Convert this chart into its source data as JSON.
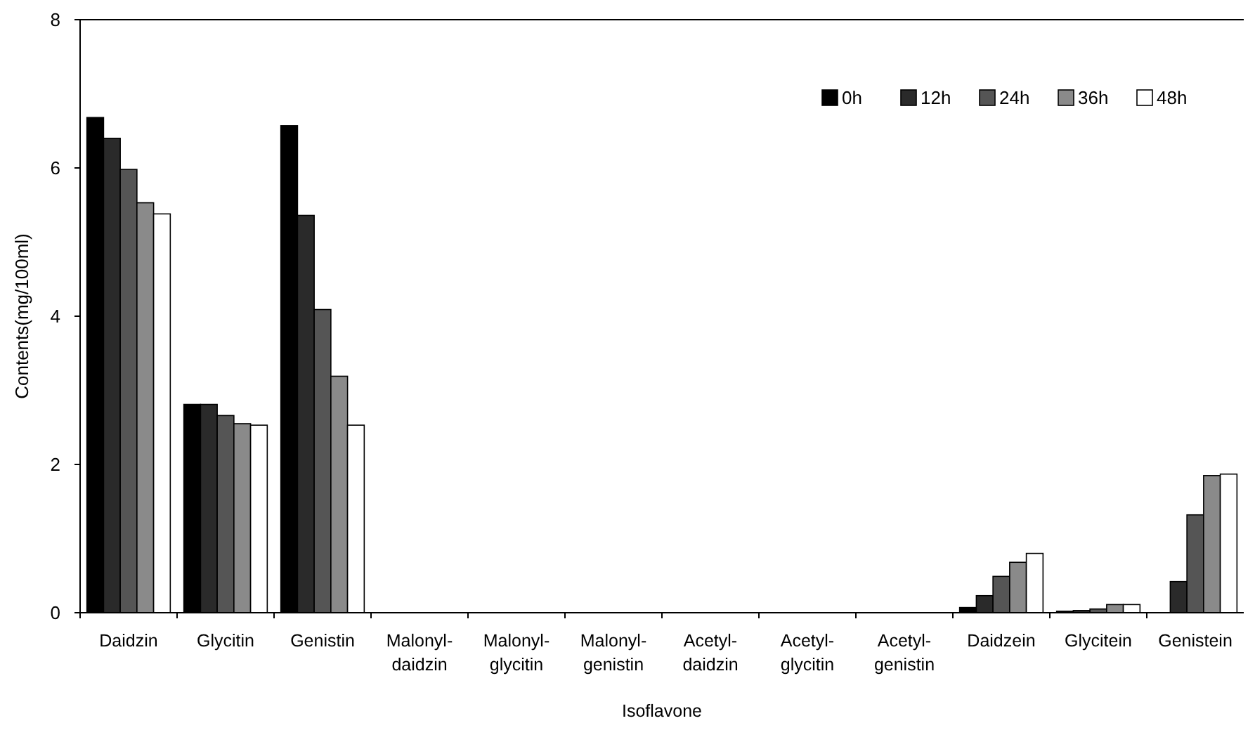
{
  "chart_data": {
    "type": "bar",
    "xlabel": "Isoflavone",
    "ylabel": "Contents(mg/100ml)",
    "categories": [
      "Daidzin",
      "Glycitin",
      "Genistin",
      "Malonyl-daidzin",
      "Malonyl-glycitin",
      "Malonyl-genistin",
      "Acetyl-daidzin",
      "Acetyl-glycitin",
      "Acetyl-genistin",
      "Daidzein",
      "Glycitein",
      "Genistein"
    ],
    "series": [
      {
        "name": "0h",
        "color": "#000000",
        "values": [
          6.68,
          2.81,
          6.57,
          0,
          0,
          0,
          0,
          0,
          0,
          0.07,
          0.02,
          0
        ]
      },
      {
        "name": "12h",
        "color": "#2a2a2a",
        "values": [
          6.4,
          2.81,
          5.36,
          0,
          0,
          0,
          0,
          0,
          0,
          0.23,
          0.03,
          0.42
        ]
      },
      {
        "name": "24h",
        "color": "#555555",
        "values": [
          5.98,
          2.66,
          4.09,
          0,
          0,
          0,
          0,
          0,
          0,
          0.49,
          0.05,
          1.32
        ]
      },
      {
        "name": "36h",
        "color": "#8a8a8a",
        "values": [
          5.53,
          2.55,
          3.19,
          0,
          0,
          0,
          0,
          0,
          0,
          0.68,
          0.11,
          1.85
        ]
      },
      {
        "name": "48h",
        "color": "#ffffff",
        "values": [
          5.38,
          2.53,
          2.53,
          0,
          0,
          0,
          0,
          0,
          0,
          0.8,
          0.11,
          1.87
        ]
      }
    ],
    "ylim": [
      0,
      8
    ],
    "yticks": [
      0,
      2,
      4,
      6,
      8
    ],
    "grid": false,
    "legend": "top right"
  }
}
